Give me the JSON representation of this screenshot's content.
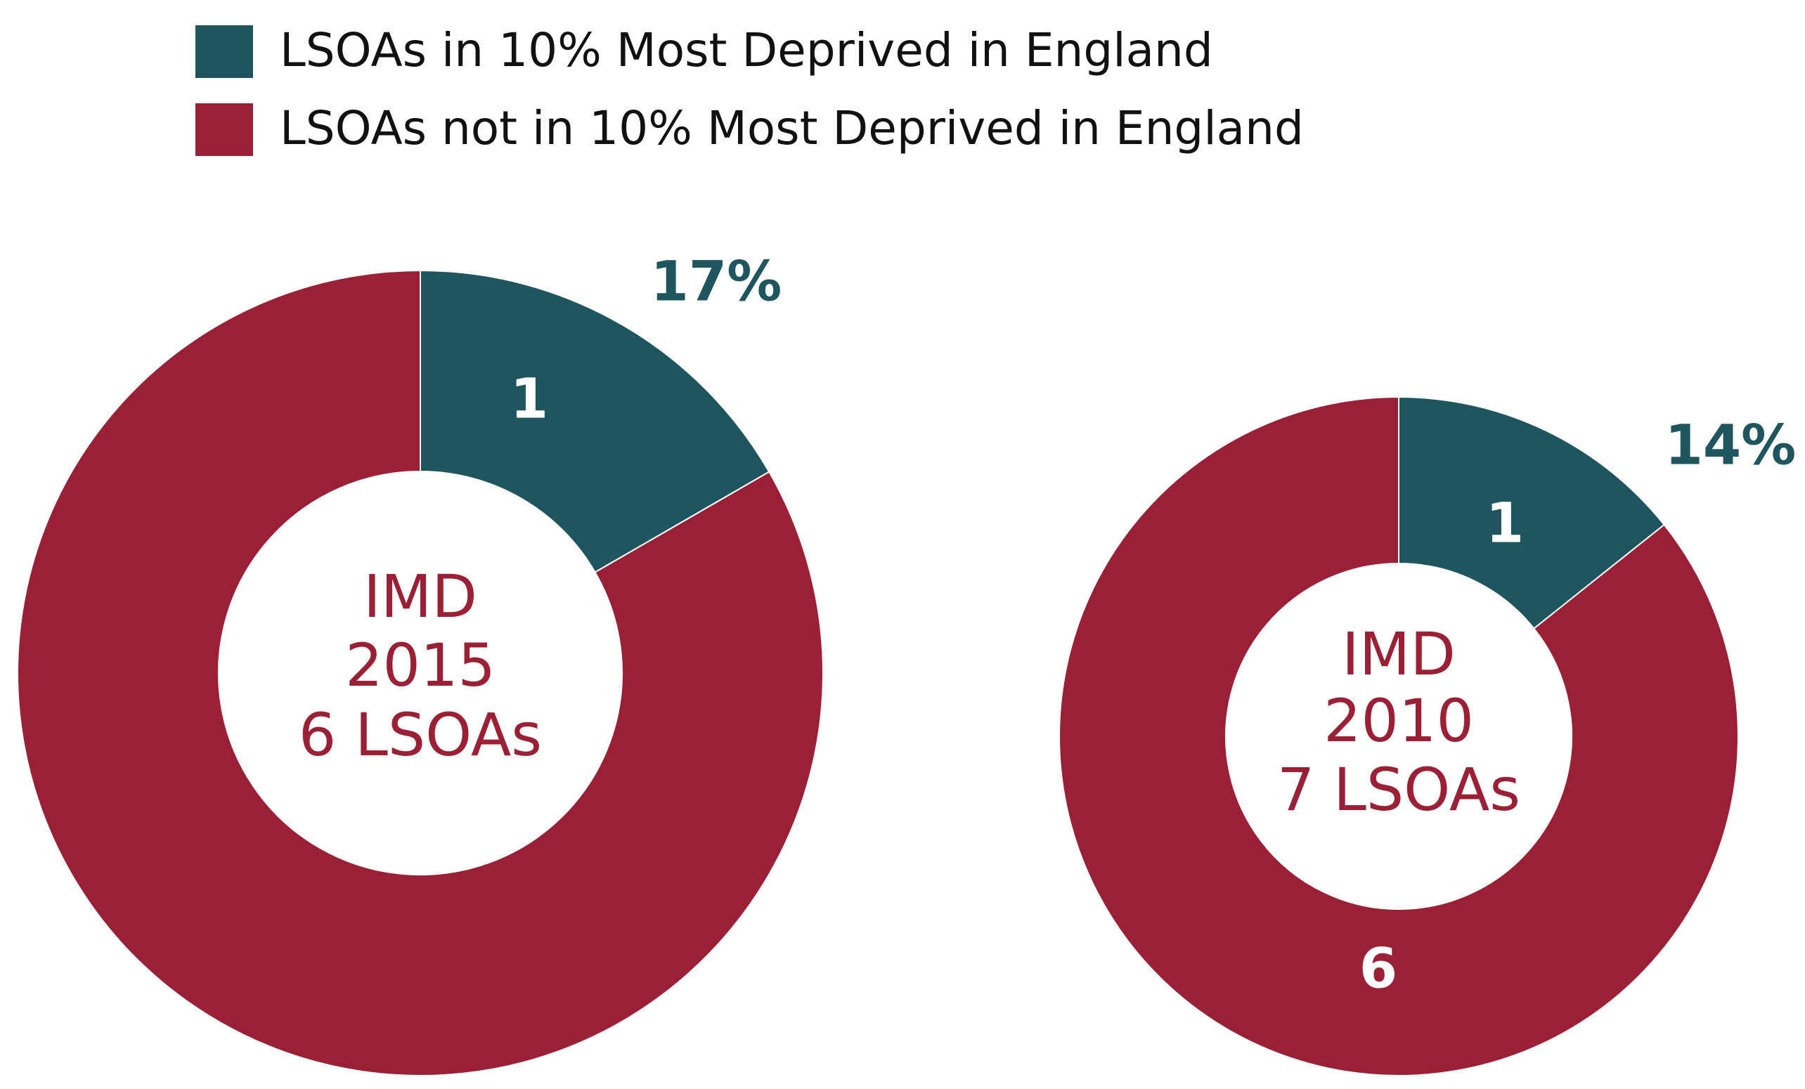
{
  "legend": {
    "items": [
      {
        "name": "LSOAs in 10% Most Deprived in England",
        "color": "#1f555e"
      },
      {
        "name": "LSOAs not in 10% Most Deprived in England",
        "color": "#9c2035"
      }
    ]
  },
  "chart_data": [
    {
      "type": "pie",
      "donut": true,
      "center_label": [
        "IMD",
        "2015",
        "6 LSOAs"
      ],
      "values": [
        1,
        5
      ],
      "value_labels": [
        "1",
        null
      ],
      "percent_labels": [
        "17%",
        null
      ]
    },
    {
      "type": "pie",
      "donut": true,
      "center_label": [
        "IMD",
        "2010",
        "7 LSOAs"
      ],
      "values": [
        1,
        6
      ],
      "value_labels": [
        "1",
        "6"
      ],
      "percent_labels": [
        "14%",
        null
      ]
    }
  ]
}
